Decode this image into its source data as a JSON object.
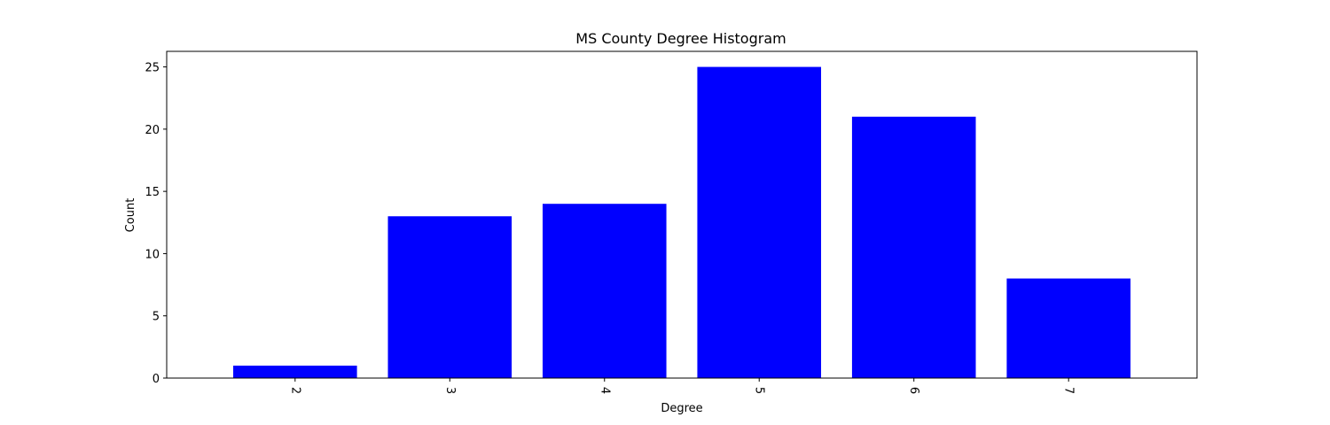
{
  "chart_data": {
    "type": "bar",
    "title": "MS County Degree Histogram",
    "xlabel": "Degree",
    "ylabel": "Count",
    "categories": [
      "2",
      "3",
      "4",
      "5",
      "6",
      "7"
    ],
    "values": [
      1,
      13,
      14,
      25,
      21,
      8
    ],
    "ylim": [
      0,
      26.25
    ],
    "yticks": [
      0,
      5,
      10,
      15,
      20,
      25
    ],
    "xtick_rotation": "270 degrees",
    "grid": false,
    "legend": "none",
    "bar_color": "#0000ff"
  }
}
